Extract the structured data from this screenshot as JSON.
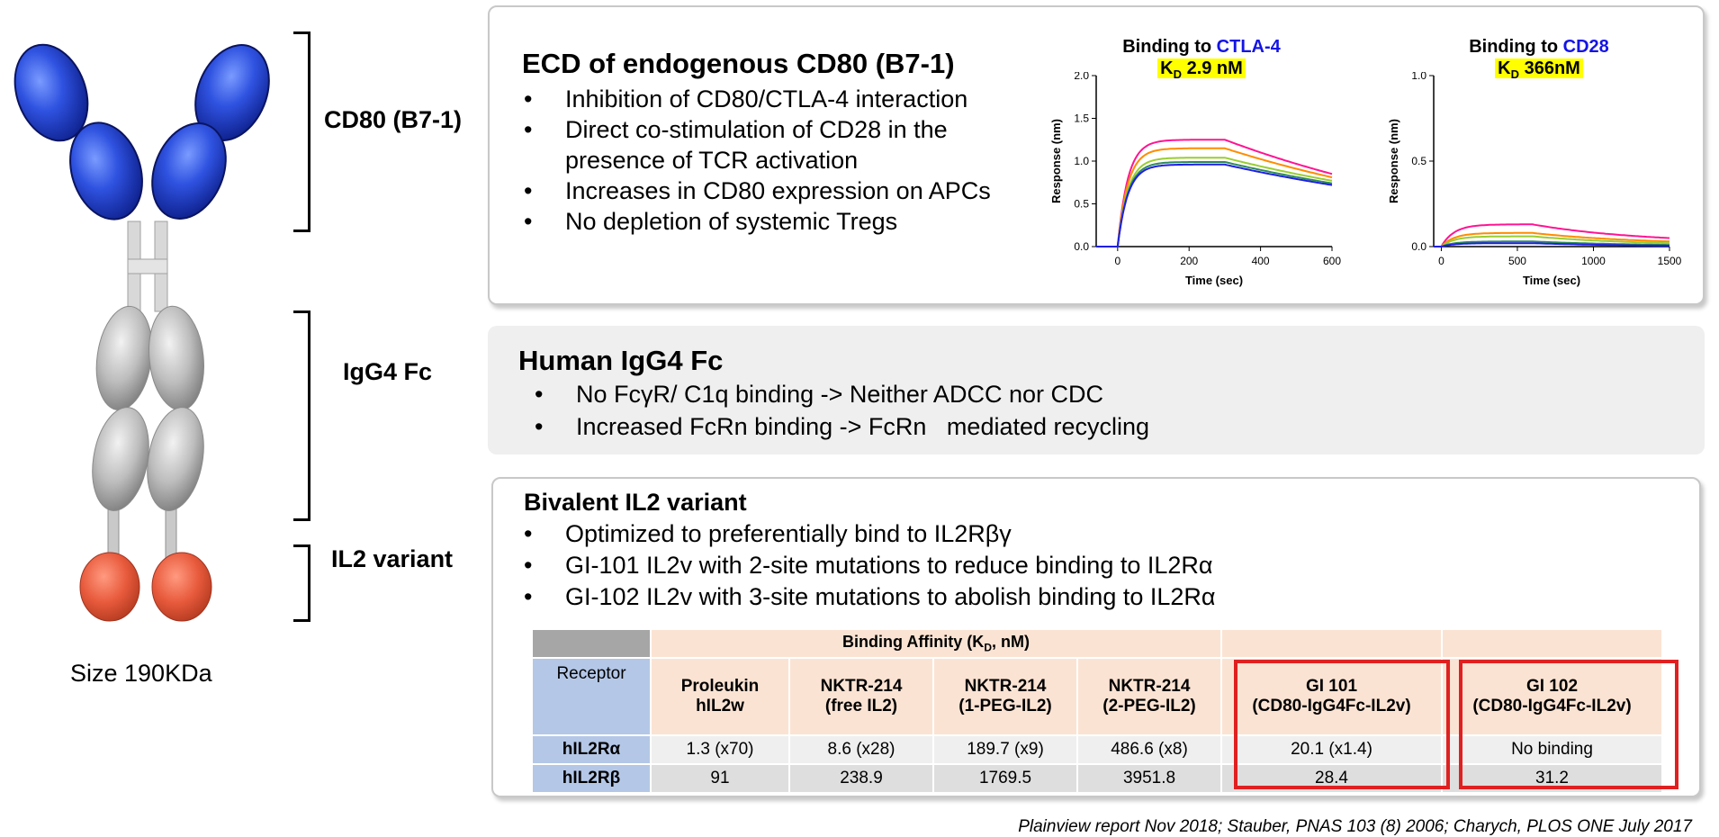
{
  "labels": {
    "cd80": "CD80 (B7-1)",
    "igg4": "IgG4 Fc",
    "il2": "IL2 variant",
    "size": "Size 190KDa"
  },
  "panel1": {
    "title": "ECD of endogenous CD80 (B7-1)",
    "bullets": [
      "Inhibition of CD80/CTLA-4 interaction",
      "Direct co-stimulation of CD28 in the presence of TCR activation",
      "Increases in CD80 expression on APCs",
      "No depletion of systemic Tregs"
    ]
  },
  "panel2": {
    "title": "Human IgG4 Fc",
    "bullets": [
      "No FcγR/ C1q binding -> Neither ADCC nor CDC",
      "Increased FcRn binding -> FcRn   mediated recycling"
    ]
  },
  "panel3": {
    "title": "Bivalent IL2 variant",
    "bullets": [
      "Optimized to preferentially bind to IL2Rβγ",
      "GI-101 IL2v with 2-site mutations to reduce binding to IL2Rα",
      "GI-102 IL2v with 3-site mutations to abolish binding to IL2Rα"
    ]
  },
  "bullet_char": "•",
  "table": {
    "group_header": "Binding Affinity (K",
    "group_header_sub": "D",
    "group_header_end": ", nM)",
    "receptor_header": "Receptor",
    "columns": [
      {
        "line1": "Proleukin",
        "line2": "hIL2w"
      },
      {
        "line1": "NKTR-214",
        "line2": "(free IL2)"
      },
      {
        "line1": "NKTR-214",
        "line2": "(1-PEG-IL2)"
      },
      {
        "line1": "NKTR-214",
        "line2": "(2-PEG-IL2)"
      },
      {
        "line1": "GI 101",
        "line2": "(CD80-IgG4Fc-IL2v)"
      },
      {
        "line1": "GI 102",
        "line2": "(CD80-IgG4Fc-IL2v)"
      }
    ],
    "rows": [
      {
        "receptor": "hIL2Rα",
        "values": [
          "1.3 (x70)",
          "8.6 (x28)",
          "189.7 (x9)",
          "486.6 (x8)",
          "20.1 (x1.4)",
          "No binding"
        ]
      },
      {
        "receptor": "hIL2Rβ",
        "values": [
          "91",
          "238.9",
          "1769.5",
          "3951.8",
          "28.4",
          "31.2"
        ]
      }
    ],
    "highlight_color": "#e02020"
  },
  "reference": "Plainview report Nov 2018; Stauber, PNAS 103 (8) 2006; Charych, PLOS ONE July 2017",
  "chart_data": [
    {
      "type": "line",
      "title_prefix": "Binding to ",
      "title_target": "CTLA-4",
      "kd_label": "K",
      "kd_sub": "D",
      "kd_value": " 2.9 nM",
      "xlabel": "Time (sec)",
      "ylabel": "Response (nm)",
      "xlim": [
        -60,
        600
      ],
      "ylim": [
        0,
        2.0
      ],
      "xticks": [
        "0",
        "200",
        "400",
        "600"
      ],
      "yticks": [
        "0.0",
        "0.5",
        "1.0",
        "1.5",
        "2.0"
      ],
      "xtick_values": [
        0,
        200,
        400,
        600
      ],
      "ytick_values": [
        0,
        0.5,
        1.0,
        1.5,
        2.0
      ],
      "association_end": 300,
      "series": [
        {
          "color": "#ff1493",
          "plateau": 1.25,
          "end": 0.85
        },
        {
          "color": "#ff8c00",
          "plateau": 1.15,
          "end": 0.81
        },
        {
          "color": "#9acd32",
          "plateau": 1.04,
          "end": 0.77
        },
        {
          "color": "#2e8b57",
          "plateau": 0.99,
          "end": 0.74
        },
        {
          "color": "#1e1ee6",
          "plateau": 0.96,
          "end": 0.72
        }
      ]
    },
    {
      "type": "line",
      "title_prefix": "Binding to ",
      "title_target": "CD28",
      "kd_label": "K",
      "kd_sub": "D",
      "kd_value": " 366nM",
      "xlabel": "Time (sec)",
      "ylabel": "Response (nm)",
      "xlim": [
        -50,
        1500
      ],
      "ylim": [
        0,
        1.0
      ],
      "xticks": [
        "0",
        "500",
        "1000",
        "1500"
      ],
      "yticks": [
        "0.0",
        "0.5",
        "1.0"
      ],
      "xtick_values": [
        0,
        500,
        1000,
        1500
      ],
      "ytick_values": [
        0,
        0.5,
        1.0
      ],
      "association_end": 600,
      "series": [
        {
          "color": "#ff1493",
          "plateau": 0.13,
          "end": 0.05
        },
        {
          "color": "#ff8c00",
          "plateau": 0.08,
          "end": 0.03
        },
        {
          "color": "#9acd32",
          "plateau": 0.06,
          "end": 0.02
        },
        {
          "color": "#2e8b57",
          "plateau": 0.03,
          "end": 0.01
        },
        {
          "color": "#1e1ee6",
          "plateau": 0.02,
          "end": 0.005
        }
      ]
    }
  ]
}
